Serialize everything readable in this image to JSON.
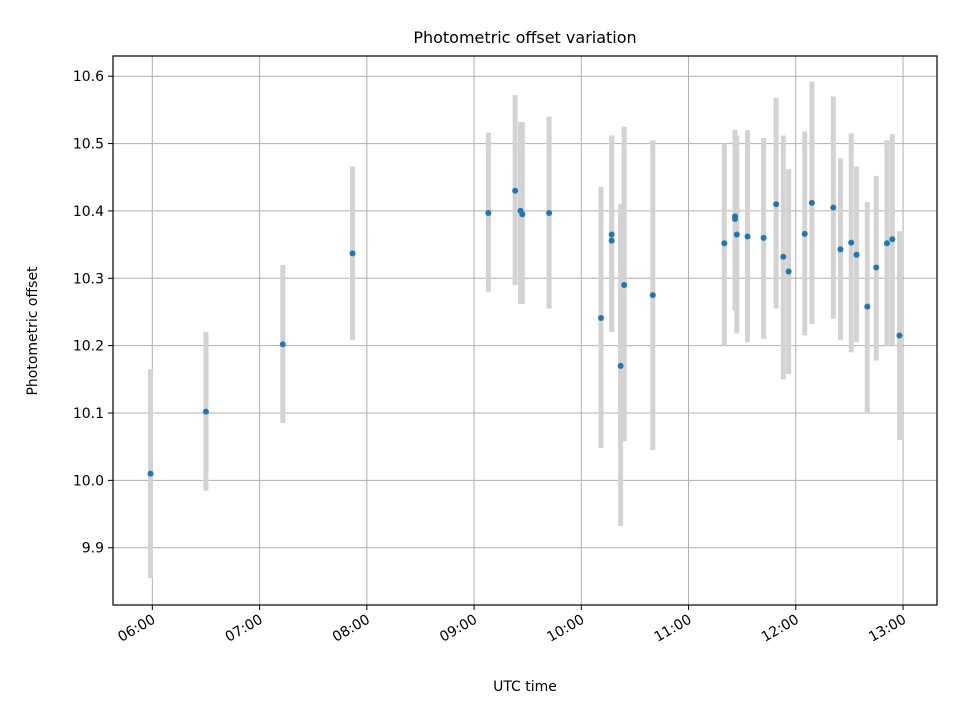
{
  "chart_data": {
    "type": "scatter",
    "title": "Photometric offset variation",
    "xlabel": "UTC time",
    "ylabel": "Photometric offset",
    "x_tick_labels": [
      "06:00",
      "07:00",
      "08:00",
      "09:00",
      "10:00",
      "11:00",
      "12:00",
      "13:00"
    ],
    "y_tick_labels": [
      "9.9",
      "10.0",
      "10.1",
      "10.2",
      "10.3",
      "10.4",
      "10.5",
      "10.6"
    ],
    "xlim": [
      "05:38",
      "13:19"
    ],
    "ylim": [
      9.815,
      10.63
    ],
    "grid": true,
    "marker_color": "#1f77b4",
    "errorbar_color": "#d3d3d3",
    "points": [
      {
        "x": "05:59",
        "y": 10.01,
        "err_low": 9.855,
        "err_high": 10.165
      },
      {
        "x": "06:30",
        "y": 10.102,
        "err_low": 9.985,
        "err_high": 10.22
      },
      {
        "x": "07:13",
        "y": 10.202,
        "err_low": 10.085,
        "err_high": 10.32
      },
      {
        "x": "07:52",
        "y": 10.337,
        "err_low": 10.208,
        "err_high": 10.466
      },
      {
        "x": "09:08",
        "y": 10.397,
        "err_low": 10.28,
        "err_high": 10.516
      },
      {
        "x": "09:23",
        "y": 10.43,
        "err_low": 10.29,
        "err_high": 10.572
      },
      {
        "x": "09:26",
        "y": 10.4,
        "err_low": 10.262,
        "err_high": 10.532
      },
      {
        "x": "09:27",
        "y": 10.395,
        "err_low": 10.262,
        "err_high": 10.532
      },
      {
        "x": "09:42",
        "y": 10.397,
        "err_low": 10.255,
        "err_high": 10.54
      },
      {
        "x": "10:11",
        "y": 10.241,
        "err_low": 10.048,
        "err_high": 10.436
      },
      {
        "x": "10:17",
        "y": 10.365,
        "err_low": 10.22,
        "err_high": 10.512
      },
      {
        "x": "10:17",
        "y": 10.356,
        "err_low": 10.22,
        "err_high": 10.512
      },
      {
        "x": "10:22",
        "y": 10.17,
        "err_low": 9.932,
        "err_high": 10.41
      },
      {
        "x": "10:24",
        "y": 10.29,
        "err_low": 10.058,
        "err_high": 10.525
      },
      {
        "x": "10:40",
        "y": 10.275,
        "err_low": 10.045,
        "err_high": 10.505
      },
      {
        "x": "11:20",
        "y": 10.352,
        "err_low": 10.2,
        "err_high": 10.5
      },
      {
        "x": "11:26",
        "y": 10.388,
        "err_low": 10.252,
        "err_high": 10.52
      },
      {
        "x": "11:26",
        "y": 10.392,
        "err_low": 10.252,
        "err_high": 10.52
      },
      {
        "x": "11:27",
        "y": 10.365,
        "err_low": 10.218,
        "err_high": 10.512
      },
      {
        "x": "11:33",
        "y": 10.362,
        "err_low": 10.205,
        "err_high": 10.52
      },
      {
        "x": "11:42",
        "y": 10.36,
        "err_low": 10.21,
        "err_high": 10.508
      },
      {
        "x": "11:49",
        "y": 10.41,
        "err_low": 10.255,
        "err_high": 10.568
      },
      {
        "x": "11:53",
        "y": 10.332,
        "err_low": 10.15,
        "err_high": 10.512
      },
      {
        "x": "11:56",
        "y": 10.31,
        "err_low": 10.158,
        "err_high": 10.462
      },
      {
        "x": "12:05",
        "y": 10.366,
        "err_low": 10.215,
        "err_high": 10.518
      },
      {
        "x": "12:09",
        "y": 10.412,
        "err_low": 10.232,
        "err_high": 10.592
      },
      {
        "x": "12:21",
        "y": 10.405,
        "err_low": 10.24,
        "err_high": 10.57
      },
      {
        "x": "12:25",
        "y": 10.343,
        "err_low": 10.208,
        "err_high": 10.478
      },
      {
        "x": "12:31",
        "y": 10.353,
        "err_low": 10.19,
        "err_high": 10.515
      },
      {
        "x": "12:34",
        "y": 10.335,
        "err_low": 10.205,
        "err_high": 10.466
      },
      {
        "x": "12:40",
        "y": 10.258,
        "err_low": 10.1,
        "err_high": 10.413
      },
      {
        "x": "12:45",
        "y": 10.316,
        "err_low": 10.178,
        "err_high": 10.452
      },
      {
        "x": "12:51",
        "y": 10.352,
        "err_low": 10.2,
        "err_high": 10.505
      },
      {
        "x": "12:54",
        "y": 10.358,
        "err_low": 10.2,
        "err_high": 10.514
      },
      {
        "x": "12:58",
        "y": 10.215,
        "err_low": 10.06,
        "err_high": 10.37
      }
    ]
  }
}
